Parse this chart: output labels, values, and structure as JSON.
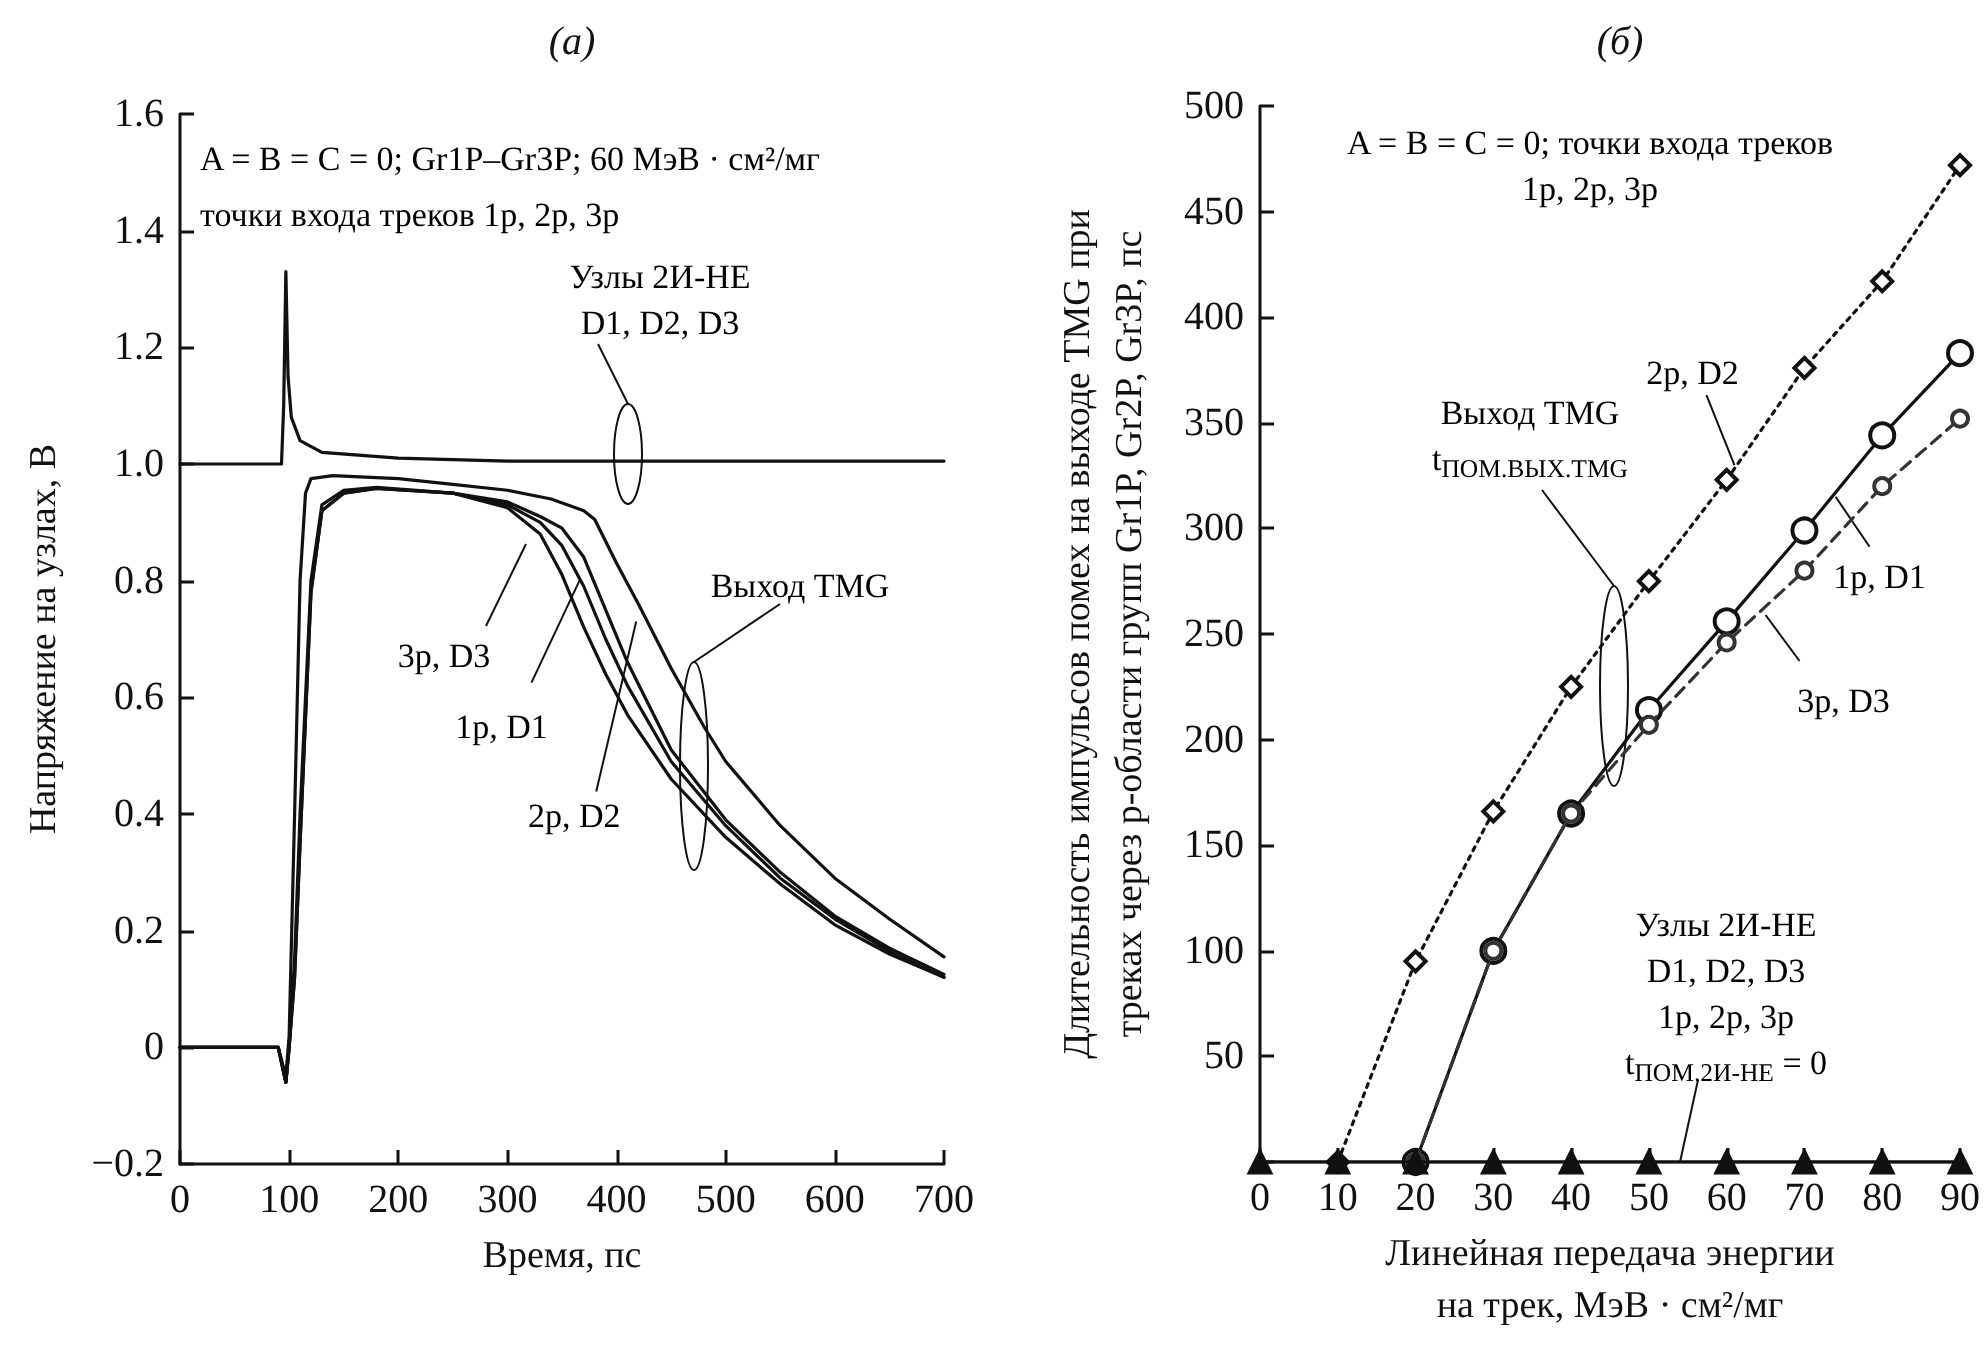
{
  "chart_data": [
    {
      "type": "line",
      "title": "(а)",
      "xlabel": "Время, пс",
      "ylabel": "Напряжение на узлах, В",
      "xlim": [
        0,
        700
      ],
      "xticks": [
        0,
        100,
        200,
        300,
        400,
        500,
        600,
        700
      ],
      "ylim": [
        -0.2,
        1.6
      ],
      "yticks": [
        {
          "value": -0.2,
          "label": "−0.2"
        },
        0,
        0.2,
        0.4,
        0.6,
        0.8,
        {
          "value": 1,
          "label": "1.0"
        },
        1.2,
        1.4,
        1.6
      ],
      "marker": "none",
      "line_style": "solid",
      "series": [
        {
          "color": "#111111",
          "x": [
            0,
            93,
            95,
            97,
            99,
            102,
            110,
            130,
            200,
            300,
            500,
            700
          ],
          "values": [
            1,
            1,
            1.1,
            1.33,
            1.15,
            1.08,
            1.04,
            1.02,
            1.01,
            1.005,
            1.005,
            1.005
          ]
        },
        {
          "color": "#111111",
          "x": [
            0,
            90,
            97,
            100,
            105,
            110,
            115,
            120,
            140,
            200,
            250,
            300,
            340,
            370,
            380,
            400,
            420,
            450,
            480,
            500,
            550,
            600,
            650,
            700
          ],
          "values": [
            0,
            0,
            -0.05,
            0.02,
            0.4,
            0.8,
            0.95,
            0.975,
            0.98,
            0.975,
            0.965,
            0.955,
            0.94,
            0.92,
            0.905,
            0.83,
            0.76,
            0.65,
            0.55,
            0.49,
            0.38,
            0.29,
            0.22,
            0.155
          ]
        },
        {
          "color": "#111111",
          "x": [
            0,
            90,
            97,
            100,
            105,
            110,
            120,
            130,
            150,
            180,
            250,
            300,
            330,
            350,
            370,
            390,
            410,
            450,
            500,
            550,
            600,
            650,
            700
          ],
          "values": [
            0,
            0,
            -0.06,
            0,
            0.15,
            0.4,
            0.8,
            0.93,
            0.955,
            0.96,
            0.95,
            0.93,
            0.9,
            0.86,
            0.79,
            0.7,
            0.62,
            0.49,
            0.38,
            0.29,
            0.22,
            0.165,
            0.12
          ]
        },
        {
          "color": "#111111",
          "x": [
            0,
            90,
            97,
            100,
            105,
            110,
            120,
            130,
            150,
            180,
            250,
            300,
            330,
            350,
            370,
            390,
            410,
            450,
            500,
            550,
            600,
            650,
            700
          ],
          "values": [
            0,
            0,
            -0.06,
            0,
            0.12,
            0.35,
            0.78,
            0.92,
            0.95,
            0.958,
            0.95,
            0.935,
            0.91,
            0.89,
            0.84,
            0.75,
            0.66,
            0.51,
            0.39,
            0.3,
            0.225,
            0.17,
            0.125
          ]
        },
        {
          "color": "#111111",
          "x": [
            0,
            90,
            97,
            100,
            105,
            110,
            120,
            130,
            150,
            180,
            250,
            300,
            330,
            350,
            370,
            390,
            410,
            450,
            500,
            550,
            600,
            650,
            700
          ],
          "values": [
            0,
            0,
            -0.06,
            0,
            0.12,
            0.35,
            0.78,
            0.92,
            0.95,
            0.958,
            0.95,
            0.925,
            0.88,
            0.81,
            0.72,
            0.64,
            0.57,
            0.46,
            0.36,
            0.28,
            0.21,
            0.16,
            0.12
          ]
        }
      ],
      "annotations": [
        "A = B = C = 0; Gr1P–Gr3P; 60 МэВ · см²/мг",
        "точки входа треков 1p, 2p, 3p",
        "Узлы 2И-НЕ\nD1, D2, D3",
        "Выход TMG",
        "3p, D3",
        {
          "text": "1p, D1",
          "x": 366,
          "y": 0.8
        },
        {
          "text": "2p, D2",
          "x": 418,
          "y": 0.73
        }
      ]
    },
    {
      "type": "line",
      "title": "(б)",
      "xlabel": "Линейная передача энергии\nна трек, МэВ · см²/мг",
      "ylabel": "Длительность импульсов помех на выходе TMG при\nтреках через p-области групп Gr1P, Gr2P, Gr3P, пс",
      "xlim": [
        0,
        90
      ],
      "xticks": [
        0,
        10,
        20,
        30,
        40,
        50,
        60,
        70,
        80,
        90
      ],
      "ylim": [
        0,
        500
      ],
      "yticks": [
        {
          "value": 0,
          "label": null
        },
        50,
        100,
        150,
        200,
        250,
        300,
        350,
        400,
        450,
        500
      ],
      "series": [
        {
          "color": "#111111",
          "marker": "diamond",
          "line_style": "dotted",
          "x": [
            10,
            20,
            30,
            40,
            50,
            60,
            70,
            80,
            90
          ],
          "values": [
            0,
            95,
            166,
            225,
            275,
            323,
            376,
            417,
            472
          ]
        },
        {
          "color": "#111111",
          "marker": "circle",
          "line_style": "solid",
          "x": [
            20,
            30,
            40,
            50,
            60,
            70,
            80,
            90
          ],
          "values": [
            0,
            100,
            165,
            214,
            256,
            299,
            344,
            383
          ]
        },
        {
          "color": "#333333",
          "marker": "circle",
          "line_style": "dashed",
          "x": [
            20,
            30,
            40,
            50,
            60,
            70,
            80,
            90
          ],
          "values": [
            0,
            100,
            165,
            207,
            246,
            280,
            320,
            352
          ]
        },
        {
          "color": "#111111",
          "marker": "triangle",
          "line_style": "solid",
          "x": [
            0,
            10,
            20,
            30,
            40,
            50,
            60,
            70,
            80,
            90
          ],
          "values": [
            0,
            0,
            0,
            0,
            0,
            0,
            0,
            0,
            0,
            0
          ]
        }
      ],
      "annotations": [
        "A = B = C = 0; точки входа треков\n1p, 2p, 3p",
        {
          "text": "2p, D2",
          "x": 61,
          "y": 330
        },
        "Выход TMG\nt$_{ПОМ.ВЫХ.TMG}$",
        {
          "text": "1p, D1",
          "x": 74,
          "y": 315
        },
        {
          "text": "3p, D3",
          "x": 65,
          "y": 259
        },
        {
          "text": "Узлы 2И-НЕ\nD1, D2, D3\n1p, 2p, 3p\nt$_{ПОМ.2И-НЕ}$ = 0",
          "x": 54,
          "y": 0
        }
      ]
    }
  ]
}
